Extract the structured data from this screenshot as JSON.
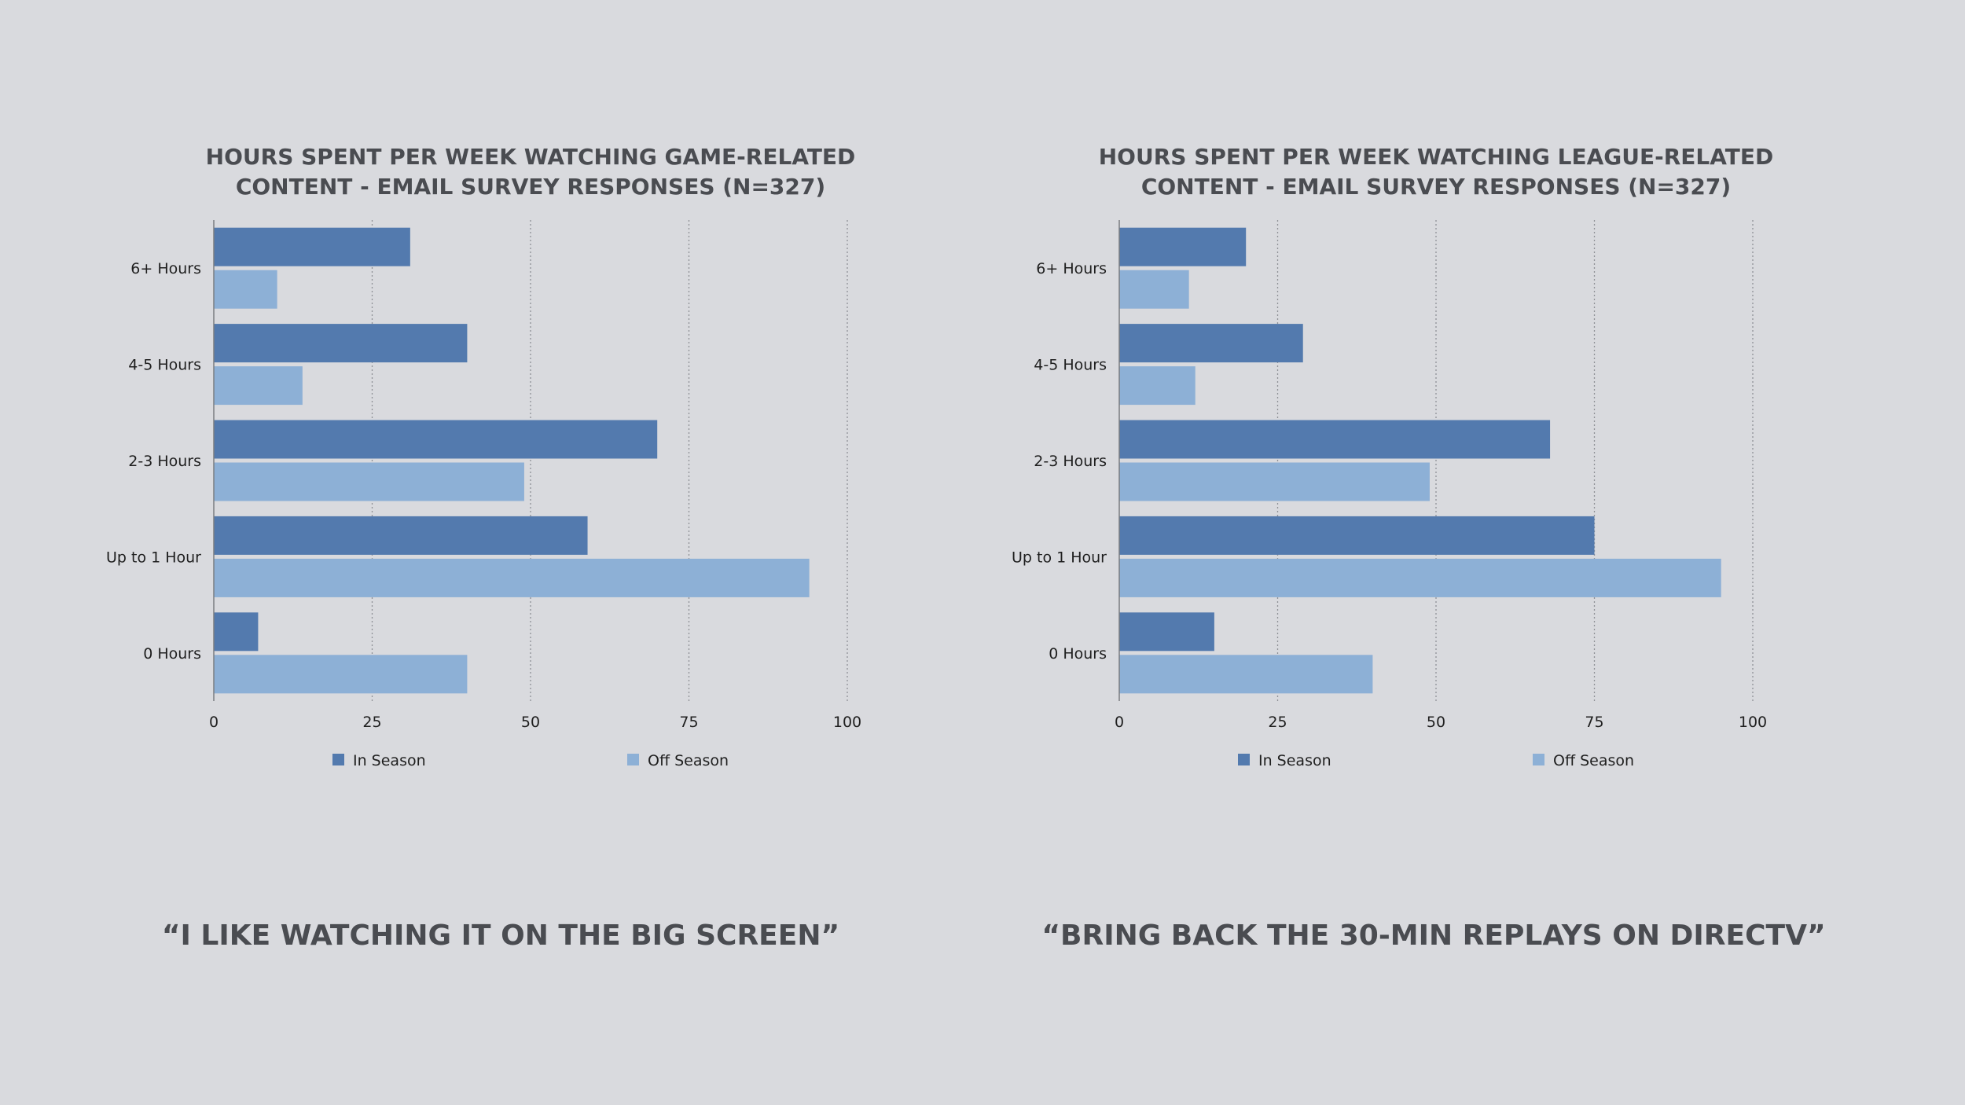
{
  "colors": {
    "background": "#d9dade",
    "in_season": "#537aae",
    "off_season": "#8db0d6",
    "text": "#4a4c51",
    "grid": "#8f9196"
  },
  "chart_data": [
    {
      "type": "bar",
      "orientation": "horizontal",
      "title": "HOURS SPENT PER WEEK WATCHING GAME-RELATED CONTENT - EMAIL SURVEY RESPONSES (N=327)",
      "title_lines": [
        "HOURS SPENT PER WEEK WATCHING GAME-RELATED",
        "CONTENT - EMAIL SURVEY RESPONSES (N=327)"
      ],
      "categories": [
        "6+ Hours",
        "4-5 Hours",
        "2-3 Hours",
        "Up to 1 Hour",
        "0 Hours"
      ],
      "series": [
        {
          "name": "In Season",
          "values": [
            31,
            40,
            70,
            59,
            7
          ]
        },
        {
          "name": "Off Season",
          "values": [
            10,
            14,
            49,
            94,
            40
          ]
        }
      ],
      "xlim": [
        0,
        100
      ],
      "xticks": [
        0,
        25,
        50,
        75,
        100
      ],
      "grid": "vertical dotted",
      "legend_position": "bottom"
    },
    {
      "type": "bar",
      "orientation": "horizontal",
      "title": "HOURS SPENT PER WEEK WATCHING LEAGUE-RELATED CONTENT - EMAIL SURVEY RESPONSES (N=327)",
      "title_lines": [
        "HOURS SPENT PER WEEK WATCHING LEAGUE-RELATED",
        "CONTENT - EMAIL SURVEY RESPONSES (N=327)"
      ],
      "categories": [
        "6+ Hours",
        "4-5 Hours",
        "2-3 Hours",
        "Up to 1 Hour",
        "0 Hours"
      ],
      "series": [
        {
          "name": "In Season",
          "values": [
            20,
            29,
            68,
            75,
            15
          ]
        },
        {
          "name": "Off Season",
          "values": [
            11,
            12,
            49,
            95,
            40
          ]
        }
      ],
      "xlim": [
        0,
        100
      ],
      "xticks": [
        0,
        25,
        50,
        75,
        100
      ],
      "grid": "vertical dotted",
      "legend_position": "bottom"
    }
  ],
  "quotes": {
    "left": "“I LIKE WATCHING IT ON THE BIG SCREEN”",
    "right": "“BRING BACK THE 30-MIN REPLAYS ON DIRECTV”"
  }
}
